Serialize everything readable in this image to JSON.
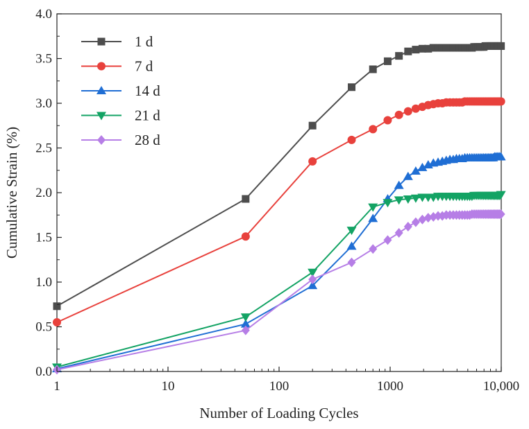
{
  "chart_data": {
    "type": "line",
    "xlabel": "Number of Loading Cycles",
    "ylabel": "Cumulative Strain (%)",
    "x_scale": "log",
    "xlim": [
      1,
      10000
    ],
    "ylim": [
      0.0,
      4.0
    ],
    "x_ticks": [
      1,
      10,
      100,
      1000,
      10000
    ],
    "x_tick_labels": [
      "1",
      "10",
      "100",
      "1000",
      "10,000"
    ],
    "y_ticks": [
      0.0,
      0.5,
      1.0,
      1.5,
      2.0,
      2.5,
      3.0,
      3.5,
      4.0
    ],
    "y_tick_labels": [
      "0.0",
      "0.5",
      "1.0",
      "1.5",
      "2.0",
      "2.5",
      "3.0",
      "3.5",
      "4.0"
    ],
    "grid": false,
    "legend_position": "top-left",
    "series": [
      {
        "name": "1 d",
        "color": "#4d4d4d",
        "marker": "square",
        "x": [
          1,
          50,
          200,
          450,
          700,
          950,
          1200,
          1450,
          1700,
          1950,
          2200,
          2450,
          2700,
          2950,
          3200,
          3450,
          3700,
          3950,
          4200,
          4450,
          4700,
          4950,
          5200,
          5450,
          5700,
          5950,
          6200,
          6450,
          6700,
          6950,
          7200,
          7450,
          7700,
          7950,
          8200,
          8450,
          8700,
          8950,
          9200,
          9450,
          9700,
          9950
        ],
        "y": [
          0.73,
          1.93,
          2.75,
          3.18,
          3.38,
          3.47,
          3.53,
          3.58,
          3.6,
          3.61,
          3.61,
          3.62,
          3.62,
          3.62,
          3.62,
          3.62,
          3.62,
          3.62,
          3.62,
          3.62,
          3.62,
          3.62,
          3.62,
          3.62,
          3.63,
          3.63,
          3.63,
          3.63,
          3.63,
          3.63,
          3.64,
          3.64,
          3.64,
          3.64,
          3.64,
          3.64,
          3.64,
          3.64,
          3.64,
          3.64,
          3.64,
          3.64
        ]
      },
      {
        "name": "7 d",
        "color": "#e8413c",
        "marker": "circle",
        "x": [
          1,
          50,
          200,
          450,
          700,
          950,
          1200,
          1450,
          1700,
          1950,
          2200,
          2450,
          2700,
          2950,
          3200,
          3450,
          3700,
          3950,
          4200,
          4450,
          4700,
          4950,
          5200,
          5450,
          5700,
          5950,
          6200,
          6450,
          6700,
          6950,
          7200,
          7450,
          7700,
          7950,
          8200,
          8450,
          8700,
          8950,
          9200,
          9450,
          9700,
          9950
        ],
        "y": [
          0.55,
          1.51,
          2.35,
          2.59,
          2.71,
          2.81,
          2.87,
          2.91,
          2.94,
          2.96,
          2.98,
          2.99,
          3.0,
          3.0,
          3.01,
          3.01,
          3.01,
          3.01,
          3.01,
          3.01,
          3.02,
          3.02,
          3.02,
          3.02,
          3.02,
          3.02,
          3.02,
          3.02,
          3.02,
          3.02,
          3.02,
          3.02,
          3.02,
          3.02,
          3.02,
          3.02,
          3.02,
          3.02,
          3.02,
          3.02,
          3.02,
          3.02
        ]
      },
      {
        "name": "14 d",
        "color": "#1f6ed4",
        "marker": "triangle-up",
        "x": [
          1,
          50,
          200,
          450,
          700,
          950,
          1200,
          1450,
          1700,
          1950,
          2200,
          2450,
          2700,
          2950,
          3200,
          3450,
          3700,
          3950,
          4200,
          4450,
          4700,
          4950,
          5200,
          5450,
          5700,
          5950,
          6200,
          6450,
          6700,
          6950,
          7200,
          7450,
          7700,
          7950,
          8200,
          8450,
          8700,
          8950,
          9200,
          9450,
          9700,
          9950
        ],
        "y": [
          0.03,
          0.53,
          0.96,
          1.4,
          1.71,
          1.93,
          2.08,
          2.18,
          2.24,
          2.28,
          2.31,
          2.33,
          2.34,
          2.35,
          2.36,
          2.37,
          2.37,
          2.38,
          2.38,
          2.38,
          2.39,
          2.39,
          2.39,
          2.39,
          2.39,
          2.39,
          2.39,
          2.39,
          2.39,
          2.39,
          2.39,
          2.39,
          2.39,
          2.39,
          2.39,
          2.39,
          2.4,
          2.4,
          2.4,
          2.4,
          2.4,
          2.4
        ]
      },
      {
        "name": "21 d",
        "color": "#13a364",
        "marker": "triangle-down",
        "x": [
          1,
          50,
          200,
          450,
          700,
          950,
          1200,
          1450,
          1700,
          1950,
          2200,
          2450,
          2700,
          2950,
          3200,
          3450,
          3700,
          3950,
          4200,
          4450,
          4700,
          4950,
          5200,
          5450,
          5700,
          5950,
          6200,
          6450,
          6700,
          6950,
          7200,
          7450,
          7700,
          7950,
          8200,
          8450,
          8700,
          8950,
          9200,
          9450,
          9700,
          9950
        ],
        "y": [
          0.05,
          0.61,
          1.11,
          1.58,
          1.84,
          1.89,
          1.92,
          1.93,
          1.94,
          1.95,
          1.95,
          1.95,
          1.96,
          1.96,
          1.96,
          1.96,
          1.96,
          1.96,
          1.96,
          1.96,
          1.96,
          1.96,
          1.96,
          1.96,
          1.97,
          1.97,
          1.97,
          1.97,
          1.97,
          1.97,
          1.97,
          1.97,
          1.97,
          1.97,
          1.97,
          1.97,
          1.97,
          1.97,
          1.97,
          1.97,
          1.97,
          1.98
        ]
      },
      {
        "name": "28 d",
        "color": "#b67ee6",
        "marker": "diamond",
        "x": [
          1,
          50,
          200,
          450,
          700,
          950,
          1200,
          1450,
          1700,
          1950,
          2200,
          2450,
          2700,
          2950,
          3200,
          3450,
          3700,
          3950,
          4200,
          4450,
          4700,
          4950,
          5200,
          5450,
          5700,
          5950,
          6200,
          6450,
          6700,
          6950,
          7200,
          7450,
          7700,
          7950,
          8200,
          8450,
          8700,
          8950,
          9200,
          9450,
          9700,
          9950
        ],
        "y": [
          0.02,
          0.46,
          1.03,
          1.22,
          1.37,
          1.47,
          1.55,
          1.62,
          1.67,
          1.7,
          1.72,
          1.73,
          1.74,
          1.74,
          1.75,
          1.75,
          1.75,
          1.75,
          1.75,
          1.75,
          1.75,
          1.75,
          1.75,
          1.76,
          1.76,
          1.76,
          1.76,
          1.76,
          1.76,
          1.76,
          1.76,
          1.76,
          1.76,
          1.76,
          1.76,
          1.76,
          1.76,
          1.76,
          1.76,
          1.76,
          1.76,
          1.76
        ]
      }
    ]
  }
}
